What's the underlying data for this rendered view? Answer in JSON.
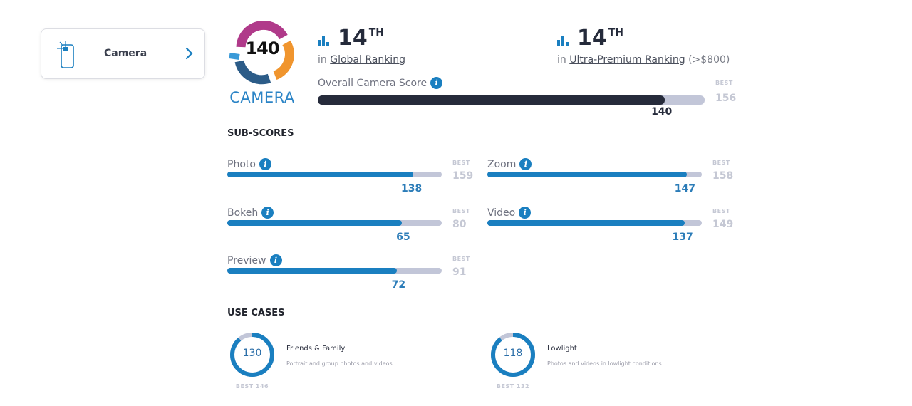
{
  "nav": {
    "label": "Camera",
    "icon": "phone-camera-icon"
  },
  "logo": {
    "score": "140",
    "caption": "CAMERA"
  },
  "rankings": [
    {
      "rank": "14",
      "suffix": "TH",
      "prefix": "in",
      "link": "Global Ranking",
      "note": ""
    },
    {
      "rank": "14",
      "suffix": "TH",
      "prefix": "in",
      "link": "Ultra-Premium Ranking",
      "note": "(>$800)"
    }
  ],
  "overall": {
    "label": "Overall Camera Score",
    "score": 140,
    "best_label": "BEST",
    "best": 156
  },
  "colors": {
    "accent": "#1a7fc0",
    "overall_fill": "#262b3b",
    "track": "#c2c6d8"
  },
  "subscores": {
    "title": "SUB-SCORES",
    "best_label": "BEST",
    "items": [
      {
        "name": "Photo",
        "score": 138,
        "best": 159
      },
      {
        "name": "Zoom",
        "score": 147,
        "best": 158
      },
      {
        "name": "Bokeh",
        "score": 65,
        "best": 80
      },
      {
        "name": "Video",
        "score": 137,
        "best": 149
      },
      {
        "name": "Preview",
        "score": 72,
        "best": 91
      }
    ]
  },
  "use_cases": {
    "title": "USE CASES",
    "items": [
      {
        "title": "Friends & Family",
        "desc": "Portrait and group photos and videos",
        "score": 130,
        "best": 146,
        "best_text": "BEST 146"
      },
      {
        "title": "Lowlight",
        "desc": "Photos and videos in lowlight conditions",
        "score": 118,
        "best": 132,
        "best_text": "BEST 132"
      }
    ]
  }
}
